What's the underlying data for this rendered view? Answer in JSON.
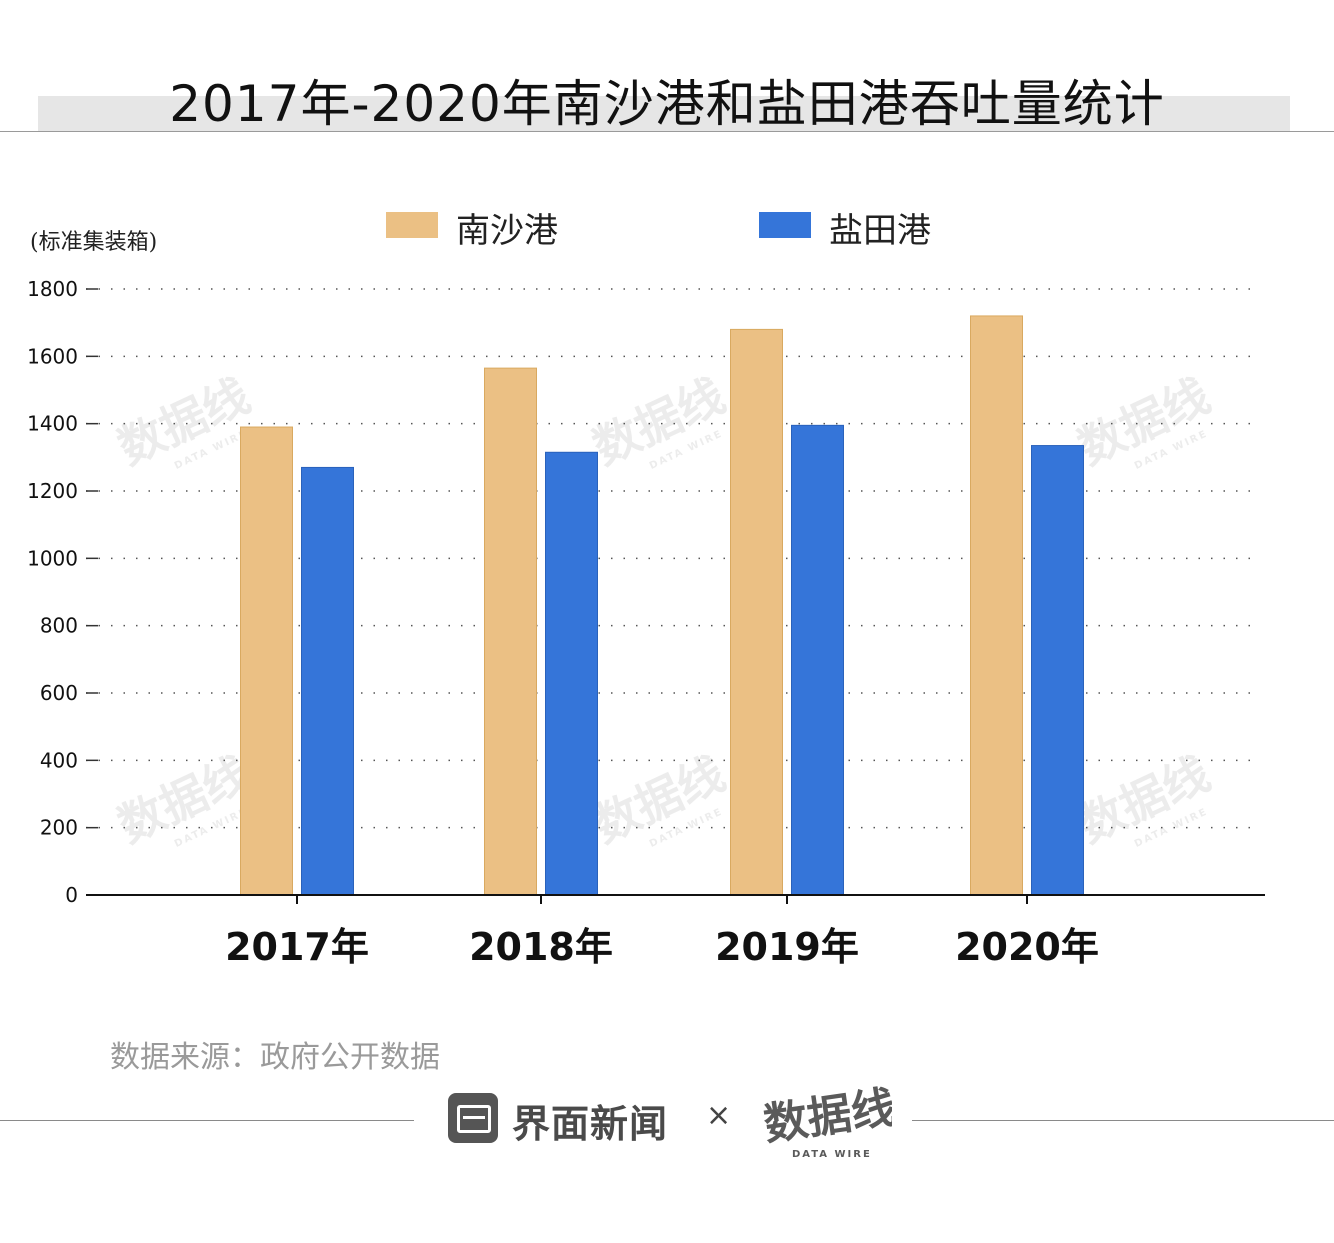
{
  "title": "2017年-2020年南沙港和盐田港吞吐量统计",
  "unit_label": "(标准集装箱)",
  "source": "数据来源：政府公开数据",
  "footer": {
    "brand_name": "界面新闻",
    "times": "×",
    "partner_logo_text": "数据线",
    "partner_logo_sub": "DATA WIRE"
  },
  "watermark": {
    "text": "数据线",
    "sub": "DATA WIRE"
  },
  "colors": {
    "nansha": "#EBC084",
    "yantian": "#3575D9",
    "title_band": "#E6E6E6"
  },
  "chart_data": {
    "type": "bar",
    "categories": [
      "2017年",
      "2018年",
      "2019年",
      "2020年"
    ],
    "series": [
      {
        "name": "南沙港",
        "values": [
          1390,
          1565,
          1680,
          1720
        ]
      },
      {
        "name": "盐田港",
        "values": [
          1270,
          1315,
          1395,
          1335
        ]
      }
    ],
    "ylim": [
      0,
      1800
    ],
    "yticks": [
      0,
      200,
      400,
      600,
      800,
      1000,
      1200,
      1400,
      1600,
      1800
    ],
    "ylabel": "(标准集装箱)",
    "grid": true,
    "legend": "top-center"
  }
}
